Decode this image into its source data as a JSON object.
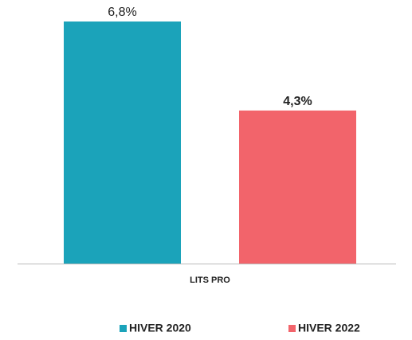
{
  "chart_data": {
    "type": "bar",
    "categories": [
      "LITS PRO"
    ],
    "series": [
      {
        "name": "HIVER 2020",
        "color": "#1ba3ba",
        "values": [
          6.8
        ],
        "value_labels": [
          "6,8%"
        ]
      },
      {
        "name": "HIVER 2022",
        "color": "#f2646b",
        "values": [
          4.3
        ],
        "value_labels": [
          "4,3%"
        ]
      }
    ]
  }
}
